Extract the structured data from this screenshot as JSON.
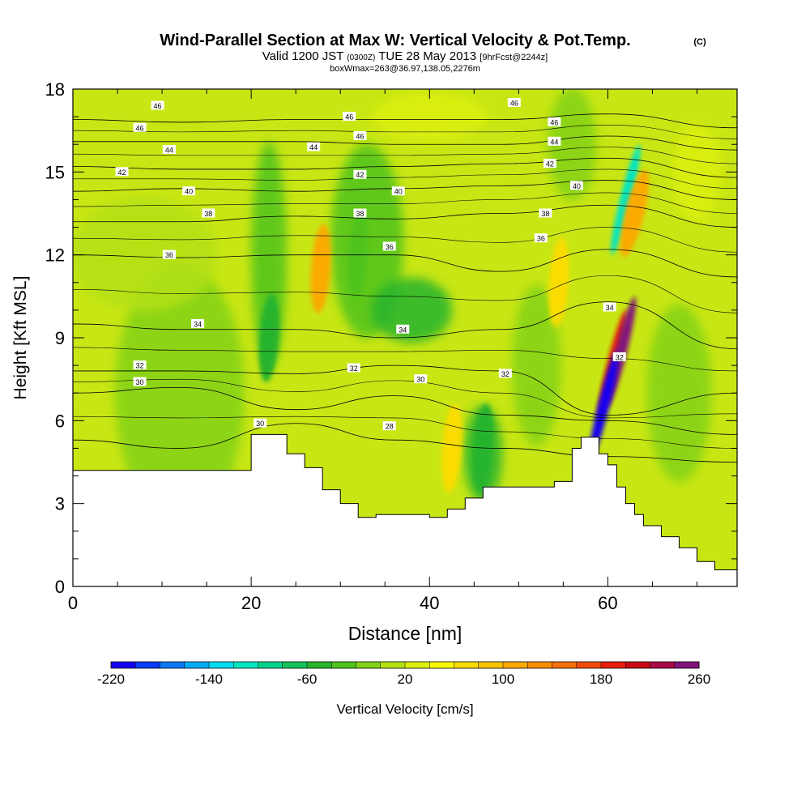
{
  "chart_data": {
    "type": "heatmap",
    "title": "Wind-Parallel Section at Max W: Vertical Velocity & Pot.Temp.",
    "title_mark": "(C)",
    "subtitle": {
      "valid": "Valid 1200 JST",
      "utc": "(0300Z)",
      "date": "TUE 28 May 2013",
      "forecast": "[9hrFcst@2244z]"
    },
    "box_label": "boxWmax=263@36.97,138.05,2276m",
    "xlabel": "Distance [nm]",
    "ylabel": "Height [Kft MSL]",
    "xlim": [
      0,
      74.5
    ],
    "ylim": [
      0,
      18
    ],
    "x_ticks": [
      0,
      20,
      40,
      60
    ],
    "x_tick_labels": [
      "0",
      "20",
      "40",
      "60"
    ],
    "y_ticks": [
      0,
      3,
      6,
      9,
      12,
      15,
      18
    ],
    "y_tick_labels": [
      "0",
      "3",
      "6",
      "9",
      "12",
      "15",
      "18"
    ],
    "colorbar": {
      "label": "Vertical Velocity [cm/s]",
      "min": -220,
      "max": 260,
      "step": 20,
      "tick_values": [
        -220,
        -140,
        -60,
        20,
        100,
        180,
        260
      ],
      "tick_labels": [
        "-220",
        "-140",
        "-60",
        "20",
        "100",
        "180",
        "260"
      ],
      "colors": [
        "#1400f0",
        "#0a3cf5",
        "#0a78f5",
        "#00aaf5",
        "#00dcf0",
        "#00e6c3",
        "#00d28c",
        "#14c35a",
        "#28b42d",
        "#50c31e",
        "#82d219",
        "#b4e114",
        "#dcf00a",
        "#fafa00",
        "#fadc00",
        "#fac300",
        "#faaa00",
        "#fa8c00",
        "#f56e0a",
        "#f04b0a",
        "#e61e0a",
        "#c80a14",
        "#aa0a46",
        "#82147d"
      ]
    },
    "terrain_height": {
      "x": [
        0,
        20,
        22,
        24,
        26,
        28,
        30,
        32,
        34,
        36,
        38,
        40,
        42,
        44,
        46,
        48,
        50,
        52,
        54,
        56,
        57,
        58,
        59,
        60,
        61,
        62,
        63,
        64,
        66,
        68,
        70,
        72,
        74.5
      ],
      "y": [
        4.2,
        5.5,
        5.5,
        4.8,
        4.3,
        3.5,
        3.0,
        2.5,
        2.6,
        2.6,
        2.6,
        2.5,
        2.8,
        3.2,
        3.6,
        3.6,
        3.6,
        3.6,
        3.8,
        5.0,
        5.4,
        5.4,
        4.8,
        4.4,
        3.6,
        3.0,
        2.6,
        2.2,
        1.8,
        1.4,
        0.9,
        0.6,
        0.3
      ]
    },
    "theta_contours": [
      {
        "level": "28",
        "y": [
          5.3,
          5.0,
          5.9,
          5.3,
          5.0,
          4.7,
          4.5
        ]
      },
      {
        "level": "30",
        "y": [
          7.0,
          7.2,
          6.4,
          6.9,
          6.2,
          6.0,
          5.5
        ]
      },
      {
        "level": "32",
        "y": [
          7.8,
          7.8,
          7.7,
          8.0,
          7.8,
          6.2,
          7.0
        ]
      },
      {
        "level": "34",
        "y": [
          9.5,
          9.3,
          9.3,
          9.0,
          9.3,
          10.3,
          8.6
        ]
      },
      {
        "level": "36",
        "y": [
          12.0,
          11.9,
          12.0,
          12.0,
          11.4,
          12.2,
          11.2
        ]
      },
      {
        "level": "38",
        "y": [
          13.2,
          13.2,
          13.4,
          13.3,
          13.5,
          13.8,
          13.0
        ]
      },
      {
        "level": "40",
        "y": [
          14.3,
          14.4,
          14.3,
          14.4,
          14.5,
          14.7,
          14.0
        ]
      },
      {
        "level": "42",
        "y": [
          15.2,
          15.1,
          15.1,
          15.2,
          15.3,
          15.5,
          14.8
        ]
      },
      {
        "level": "44",
        "y": [
          16.1,
          16.1,
          16.1,
          16.0,
          16.0,
          16.3,
          15.8
        ]
      },
      {
        "level": "46",
        "y": [
          16.9,
          16.8,
          16.9,
          16.9,
          16.9,
          17.1,
          16.6
        ]
      }
    ],
    "theta_x": [
      0,
      12,
      25,
      36,
      48,
      60,
      74.5
    ],
    "contour_labels": [
      {
        "text": "46",
        "x": 9.5,
        "y": 17.4
      },
      {
        "text": "46",
        "x": 7.5,
        "y": 16.6
      },
      {
        "text": "44",
        "x": 10.8,
        "y": 15.8
      },
      {
        "text": "42",
        "x": 5.5,
        "y": 15.0
      },
      {
        "text": "40",
        "x": 13.0,
        "y": 14.3
      },
      {
        "text": "38",
        "x": 15.2,
        "y": 13.5
      },
      {
        "text": "36",
        "x": 10.8,
        "y": 12.0
      },
      {
        "text": "34",
        "x": 14.0,
        "y": 9.5
      },
      {
        "text": "32",
        "x": 7.5,
        "y": 8.0
      },
      {
        "text": "30",
        "x": 7.5,
        "y": 7.4
      },
      {
        "text": "30",
        "x": 21.0,
        "y": 5.9
      },
      {
        "text": "46",
        "x": 31.0,
        "y": 17.0
      },
      {
        "text": "46",
        "x": 32.2,
        "y": 16.3
      },
      {
        "text": "44",
        "x": 27.0,
        "y": 15.9
      },
      {
        "text": "42",
        "x": 32.2,
        "y": 14.9
      },
      {
        "text": "38",
        "x": 32.2,
        "y": 13.5
      },
      {
        "text": "40",
        "x": 36.5,
        "y": 14.3
      },
      {
        "text": "36",
        "x": 35.5,
        "y": 12.3
      },
      {
        "text": "34",
        "x": 37.0,
        "y": 9.3
      },
      {
        "text": "32",
        "x": 31.5,
        "y": 7.9
      },
      {
        "text": "30",
        "x": 39.0,
        "y": 7.5
      },
      {
        "text": "28",
        "x": 35.5,
        "y": 5.8
      },
      {
        "text": "46",
        "x": 49.5,
        "y": 17.5
      },
      {
        "text": "46",
        "x": 54.0,
        "y": 16.8
      },
      {
        "text": "44",
        "x": 54.0,
        "y": 16.1
      },
      {
        "text": "42",
        "x": 53.5,
        "y": 15.3
      },
      {
        "text": "40",
        "x": 56.5,
        "y": 14.5
      },
      {
        "text": "38",
        "x": 53.0,
        "y": 13.5
      },
      {
        "text": "36",
        "x": 52.5,
        "y": 12.6
      },
      {
        "text": "34",
        "x": 60.2,
        "y": 10.1
      },
      {
        "text": "32",
        "x": 61.3,
        "y": 8.3
      },
      {
        "text": "32",
        "x": 48.5,
        "y": 7.7
      }
    ],
    "w_features": [
      {
        "x": 60.5,
        "y": 8.0,
        "value": 180
      },
      {
        "x": 61.5,
        "y": 8.5,
        "value": 260
      },
      {
        "x": 59.5,
        "y": 6.5,
        "value": -220
      },
      {
        "x": 62.0,
        "y": 14.0,
        "value": -120
      },
      {
        "x": 63.0,
        "y": 13.5,
        "value": 100
      },
      {
        "x": 27.8,
        "y": 11.5,
        "value": 100
      },
      {
        "x": 42.5,
        "y": 5.0,
        "value": 60
      },
      {
        "x": 54.5,
        "y": 11.0,
        "value": 60
      },
      {
        "x": 46.0,
        "y": 5.0,
        "value": -60
      },
      {
        "x": 32.0,
        "y": 12.0,
        "value": -40
      },
      {
        "x": 22.0,
        "y": 9.0,
        "value": -50
      }
    ]
  }
}
